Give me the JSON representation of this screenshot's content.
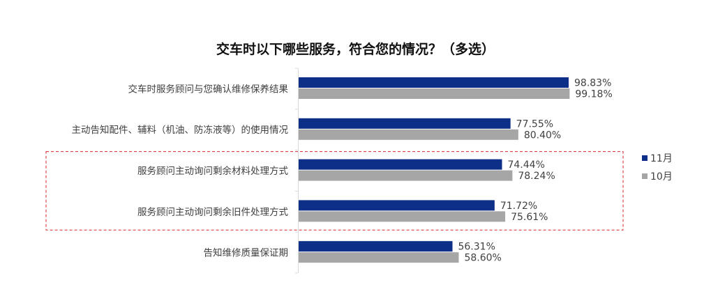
{
  "chart_data": {
    "type": "bar",
    "orientation": "horizontal",
    "title": "交车时以下哪些服务，符合您的情况？（多选）",
    "categories": [
      "交车时服务顾问与您确认维修保养结果",
      "主动告知配件、辅料（机油、防冻液等）的使用情况",
      "服务顾问主动询问剩余材料处理方式",
      "服务顾问主动询问剩余旧件处理方式",
      "告知维修质量保证期"
    ],
    "series": [
      {
        "name": "11月",
        "values": [
          98.83,
          77.55,
          74.44,
          71.72,
          56.31
        ],
        "labels": [
          "98.83%",
          "77.55%",
          "74.44%",
          "71.72%",
          "56.31%"
        ],
        "color": "#0D2F87"
      },
      {
        "name": "10月",
        "values": [
          99.18,
          80.4,
          78.24,
          75.61,
          58.6
        ],
        "labels": [
          "99.18%",
          "80.40%",
          "78.24%",
          "75.61%",
          "58.60%"
        ],
        "color": "#A6A6A6"
      }
    ],
    "xlim": [
      0,
      100
    ],
    "grid": false,
    "legend": "right",
    "highlighted_categories": [
      2,
      3
    ],
    "highlight_color": "#D9252B"
  }
}
